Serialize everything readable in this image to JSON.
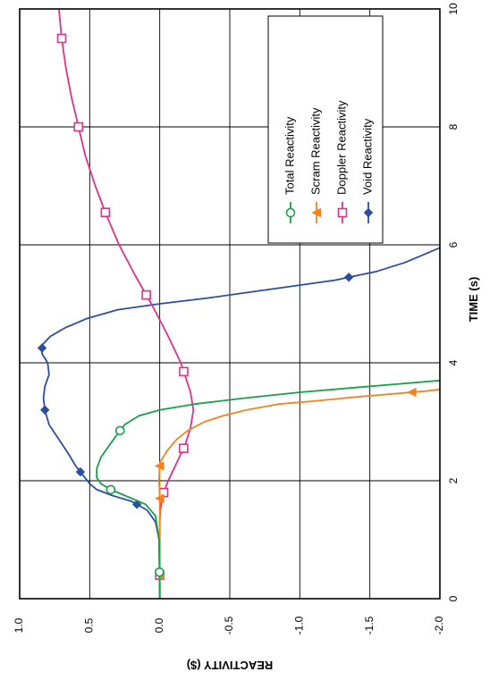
{
  "chart_data": {
    "type": "line",
    "xlabel": "TIME (s)",
    "ylabel": "REACTIVITY ($)",
    "xlim": [
      0,
      10
    ],
    "ylim": [
      -2.0,
      1.0
    ],
    "x_ticks": [
      "0",
      "2",
      "4",
      "6",
      "8",
      "10"
    ],
    "y_ticks": [
      "1.0",
      "0.5",
      "0.0",
      "-0.5",
      "-1.0",
      "-1.5",
      "-2.0"
    ],
    "grid": true,
    "legend_position": "top-right",
    "orientation": "rotated-90",
    "series": [
      {
        "name": "Void Reactivity",
        "color": "#2b4ea0",
        "marker": "diamond",
        "points": [
          [
            0,
            0
          ],
          [
            0.3,
            0
          ],
          [
            1.0,
            0.005
          ],
          [
            1.3,
            0.03
          ],
          [
            1.5,
            0.09
          ],
          [
            1.65,
            0.2
          ],
          [
            1.75,
            0.34
          ],
          [
            1.85,
            0.45
          ],
          [
            1.95,
            0.5
          ],
          [
            2.1,
            0.55
          ],
          [
            2.25,
            0.6
          ],
          [
            2.45,
            0.65
          ],
          [
            2.7,
            0.72
          ],
          [
            2.95,
            0.79
          ],
          [
            3.2,
            0.82
          ],
          [
            3.4,
            0.83
          ],
          [
            3.6,
            0.82
          ],
          [
            3.8,
            0.79
          ],
          [
            4.0,
            0.8
          ],
          [
            4.15,
            0.84
          ],
          [
            4.3,
            0.84
          ],
          [
            4.45,
            0.78
          ],
          [
            4.6,
            0.67
          ],
          [
            4.75,
            0.52
          ],
          [
            4.9,
            0.3
          ],
          [
            5.0,
            0.0
          ],
          [
            5.1,
            -0.35
          ],
          [
            5.25,
            -0.8
          ],
          [
            5.4,
            -1.25
          ],
          [
            5.55,
            -1.55
          ],
          [
            5.7,
            -1.75
          ],
          [
            5.85,
            -1.9
          ],
          [
            5.95,
            -2.0
          ]
        ],
        "marker_x": [
          0.4,
          1.6,
          2.15,
          3.2,
          4.25,
          5.45
        ]
      },
      {
        "name": "Doppler Reactivity",
        "color": "#e0308a",
        "marker": "square",
        "points": [
          [
            0,
            0
          ],
          [
            1.3,
            0
          ],
          [
            1.5,
            -0.005
          ],
          [
            1.75,
            -0.02
          ],
          [
            2.0,
            -0.06
          ],
          [
            2.3,
            -0.12
          ],
          [
            2.6,
            -0.18
          ],
          [
            2.9,
            -0.22
          ],
          [
            3.2,
            -0.24
          ],
          [
            3.5,
            -0.22
          ],
          [
            4.0,
            -0.15
          ],
          [
            4.5,
            -0.05
          ],
          [
            5.0,
            0.06
          ],
          [
            5.5,
            0.18
          ],
          [
            6.0,
            0.29
          ],
          [
            6.5,
            0.38
          ],
          [
            7.0,
            0.46
          ],
          [
            7.5,
            0.53
          ],
          [
            8.0,
            0.58
          ],
          [
            8.5,
            0.63
          ],
          [
            9.0,
            0.67
          ],
          [
            9.5,
            0.7
          ],
          [
            10.0,
            0.72
          ]
        ],
        "marker_x": [
          0.4,
          1.8,
          2.55,
          3.85,
          5.15,
          6.55,
          8.0,
          9.5
        ]
      },
      {
        "name": "Scram Reactivity",
        "color": "#f5821f",
        "marker": "triangle",
        "points": [
          [
            0,
            0
          ],
          [
            1.5,
            0
          ],
          [
            1.7,
            0.0
          ],
          [
            2.0,
            0.005
          ],
          [
            2.3,
            0.0
          ],
          [
            2.5,
            -0.05
          ],
          [
            2.7,
            -0.12
          ],
          [
            2.85,
            -0.2
          ],
          [
            3.0,
            -0.32
          ],
          [
            3.1,
            -0.45
          ],
          [
            3.2,
            -0.62
          ],
          [
            3.3,
            -0.85
          ],
          [
            3.35,
            -1.1
          ],
          [
            3.42,
            -1.4
          ],
          [
            3.48,
            -1.7
          ],
          [
            3.52,
            -1.9
          ],
          [
            3.55,
            -2.0
          ]
        ],
        "marker_x": [
          0.4,
          1.7,
          2.25,
          3.5
        ]
      },
      {
        "name": "Total Reactivity",
        "color": "#17a04a",
        "marker": "circle",
        "points": [
          [
            0,
            0
          ],
          [
            1.0,
            0.005
          ],
          [
            1.4,
            0.03
          ],
          [
            1.6,
            0.1
          ],
          [
            1.75,
            0.25
          ],
          [
            1.85,
            0.35
          ],
          [
            1.95,
            0.42
          ],
          [
            2.05,
            0.45
          ],
          [
            2.2,
            0.45
          ],
          [
            2.4,
            0.42
          ],
          [
            2.6,
            0.36
          ],
          [
            2.8,
            0.3
          ],
          [
            2.95,
            0.25
          ],
          [
            3.1,
            0.15
          ],
          [
            3.2,
            0.0
          ],
          [
            3.3,
            -0.25
          ],
          [
            3.4,
            -0.6
          ],
          [
            3.5,
            -1.0
          ],
          [
            3.58,
            -1.4
          ],
          [
            3.65,
            -1.75
          ],
          [
            3.7,
            -2.0
          ]
        ],
        "marker_x": [
          0.45,
          1.85,
          2.85
        ]
      }
    ]
  }
}
